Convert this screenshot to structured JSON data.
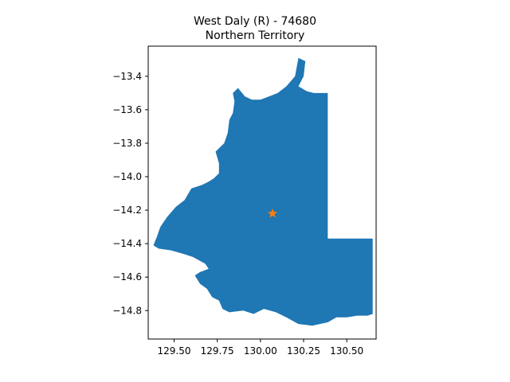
{
  "title": {
    "line1": "West Daly (R) - 74680",
    "line2": "Northern Territory"
  },
  "chart_data": {
    "type": "map",
    "region_name": "West Daly (R) - 74680",
    "state": "Northern Territory",
    "xlim": [
      129.35,
      130.67
    ],
    "ylim": [
      -14.97,
      -13.22
    ],
    "x_ticks": [
      {
        "value": 129.5,
        "label": "129.50"
      },
      {
        "value": 129.75,
        "label": "129.75"
      },
      {
        "value": 130.0,
        "label": "130.00"
      },
      {
        "value": 130.25,
        "label": "130.25"
      },
      {
        "value": 130.5,
        "label": "130.50"
      }
    ],
    "y_ticks": [
      {
        "value": -13.4,
        "label": "−13.4"
      },
      {
        "value": -13.6,
        "label": "−13.6"
      },
      {
        "value": -13.8,
        "label": "−13.8"
      },
      {
        "value": -14.0,
        "label": "−14.0"
      },
      {
        "value": -14.2,
        "label": "−14.2"
      },
      {
        "value": -14.4,
        "label": "−14.4"
      },
      {
        "value": -14.6,
        "label": "−14.6"
      },
      {
        "value": -14.8,
        "label": "−14.8"
      }
    ],
    "region_polygon": [
      [
        130.22,
        -13.29
      ],
      [
        130.26,
        -13.31
      ],
      [
        130.25,
        -13.4
      ],
      [
        130.22,
        -13.46
      ],
      [
        130.27,
        -13.49
      ],
      [
        130.31,
        -13.5
      ],
      [
        130.39,
        -13.5
      ],
      [
        130.39,
        -14.37
      ],
      [
        130.65,
        -14.37
      ],
      [
        130.65,
        -14.82
      ],
      [
        130.62,
        -14.83
      ],
      [
        130.56,
        -14.83
      ],
      [
        130.5,
        -14.84
      ],
      [
        130.44,
        -14.84
      ],
      [
        130.39,
        -14.87
      ],
      [
        130.3,
        -14.89
      ],
      [
        130.22,
        -14.88
      ],
      [
        130.15,
        -14.84
      ],
      [
        130.09,
        -14.81
      ],
      [
        130.02,
        -14.79
      ],
      [
        129.96,
        -14.82
      ],
      [
        129.9,
        -14.8
      ],
      [
        129.82,
        -14.81
      ],
      [
        129.78,
        -14.79
      ],
      [
        129.76,
        -14.74
      ],
      [
        129.72,
        -14.72
      ],
      [
        129.69,
        -14.67
      ],
      [
        129.65,
        -14.64
      ],
      [
        129.62,
        -14.59
      ],
      [
        129.65,
        -14.57
      ],
      [
        129.7,
        -14.55
      ],
      [
        129.68,
        -14.52
      ],
      [
        129.61,
        -14.48
      ],
      [
        129.55,
        -14.46
      ],
      [
        129.48,
        -14.44
      ],
      [
        129.41,
        -14.43
      ],
      [
        129.38,
        -14.41
      ],
      [
        129.4,
        -14.36
      ],
      [
        129.42,
        -14.3
      ],
      [
        129.46,
        -14.24
      ],
      [
        129.51,
        -14.18
      ],
      [
        129.56,
        -14.14
      ],
      [
        129.6,
        -14.07
      ],
      [
        129.66,
        -14.05
      ],
      [
        129.7,
        -14.03
      ],
      [
        129.73,
        -14.01
      ],
      [
        129.76,
        -13.98
      ],
      [
        129.76,
        -13.92
      ],
      [
        129.74,
        -13.85
      ],
      [
        129.79,
        -13.8
      ],
      [
        129.81,
        -13.74
      ],
      [
        129.82,
        -13.66
      ],
      [
        129.84,
        -13.62
      ],
      [
        129.85,
        -13.55
      ],
      [
        129.84,
        -13.5
      ],
      [
        129.87,
        -13.47
      ],
      [
        129.91,
        -13.52
      ],
      [
        129.95,
        -13.54
      ],
      [
        130.0,
        -13.54
      ],
      [
        130.05,
        -13.52
      ],
      [
        130.1,
        -13.5
      ],
      [
        130.15,
        -13.46
      ],
      [
        130.2,
        -13.4
      ]
    ],
    "marker": {
      "x": 130.07,
      "y": -14.22,
      "shape": "star"
    },
    "colors": {
      "fill": "#1f77b4",
      "marker": "#ff7f0e",
      "axes": "#000000",
      "background": "#ffffff"
    }
  }
}
